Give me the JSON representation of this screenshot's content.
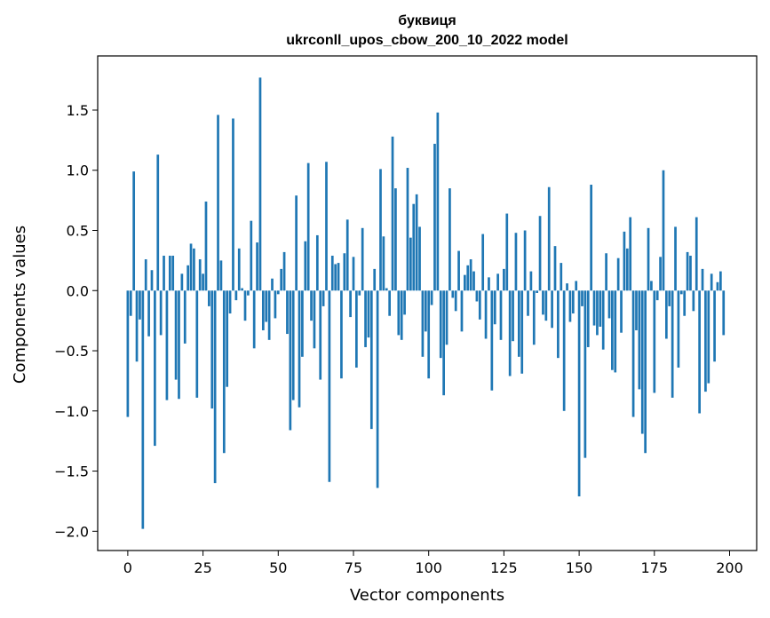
{
  "chart_data": {
    "type": "bar",
    "title": "буквиця",
    "subtitle": "ukrconll_upos_cbow_200_10_2022 model",
    "xlabel": "Vector components",
    "ylabel": "Components values",
    "xlim": [
      -10,
      209
    ],
    "ylim": [
      -2.16,
      1.95
    ],
    "xticks": [
      0,
      25,
      50,
      75,
      100,
      125,
      150,
      175,
      200
    ],
    "yticks": [
      -2.0,
      -1.5,
      -1.0,
      -0.5,
      0.0,
      0.5,
      1.0,
      1.5
    ],
    "ytick_labels": [
      "−2.0",
      "−1.5",
      "−1.0",
      "−0.5",
      "0.0",
      "0.5",
      "1.0",
      "1.5"
    ],
    "bar_color": "#1f77b4",
    "grid": false,
    "values": [
      -1.05,
      -0.21,
      0.99,
      -0.59,
      -0.24,
      -1.98,
      0.26,
      -0.38,
      0.17,
      -1.29,
      1.13,
      -0.37,
      0.29,
      -0.91,
      0.29,
      0.29,
      -0.74,
      -0.9,
      0.14,
      -0.44,
      0.21,
      0.39,
      0.35,
      -0.89,
      0.26,
      0.14,
      0.74,
      -0.13,
      -0.98,
      -1.6,
      1.46,
      0.25,
      -1.35,
      -0.8,
      -0.19,
      1.43,
      -0.08,
      0.35,
      0.02,
      -0.25,
      -0.04,
      0.58,
      -0.48,
      0.4,
      1.77,
      -0.33,
      -0.26,
      -0.41,
      0.1,
      -0.23,
      -0.03,
      0.18,
      0.32,
      -0.36,
      -1.16,
      -0.91,
      0.79,
      -0.97,
      -0.55,
      0.41,
      1.06,
      -0.25,
      -0.48,
      0.46,
      -0.74,
      -0.13,
      1.07,
      -1.59,
      0.29,
      0.22,
      0.23,
      -0.73,
      0.31,
      0.59,
      -0.22,
      0.28,
      -0.64,
      -0.04,
      0.52,
      -0.47,
      -0.39,
      -1.15,
      0.18,
      -1.64,
      1.01,
      0.45,
      0.02,
      -0.21,
      1.28,
      0.85,
      -0.37,
      -0.41,
      -0.2,
      1.02,
      0.44,
      0.72,
      0.8,
      0.53,
      -0.55,
      -0.34,
      -0.73,
      -0.12,
      1.22,
      1.48,
      -0.56,
      -0.87,
      -0.45,
      0.85,
      -0.06,
      -0.17,
      0.33,
      -0.34,
      0.13,
      0.21,
      0.26,
      0.16,
      -0.09,
      -0.24,
      0.47,
      -0.4,
      0.11,
      -0.83,
      -0.28,
      0.14,
      -0.41,
      0.18,
      0.64,
      -0.71,
      -0.42,
      0.48,
      -0.55,
      -0.69,
      0.5,
      -0.21,
      0.16,
      -0.45,
      -0.02,
      0.62,
      -0.2,
      -0.25,
      0.86,
      -0.31,
      0.37,
      -0.56,
      0.23,
      -1.0,
      0.06,
      -0.26,
      -0.19,
      0.08,
      -1.71,
      -0.13,
      -1.39,
      -0.47,
      0.88,
      -0.29,
      -0.37,
      -0.3,
      -0.49,
      0.31,
      -0.23,
      -0.66,
      -0.68,
      0.27,
      -0.35,
      0.49,
      0.35,
      0.61,
      -1.05,
      -0.33,
      -0.82,
      -1.19,
      -1.35,
      0.52,
      0.08,
      -0.85,
      -0.08,
      0.28,
      1.0,
      -0.4,
      -0.13,
      -0.89,
      0.53,
      -0.64,
      -0.03,
      -0.21,
      0.32,
      0.29,
      -0.17,
      0.61,
      -1.02,
      0.18,
      -0.84,
      -0.77,
      0.14,
      -0.59,
      0.07,
      0.16,
      -0.37
    ]
  }
}
